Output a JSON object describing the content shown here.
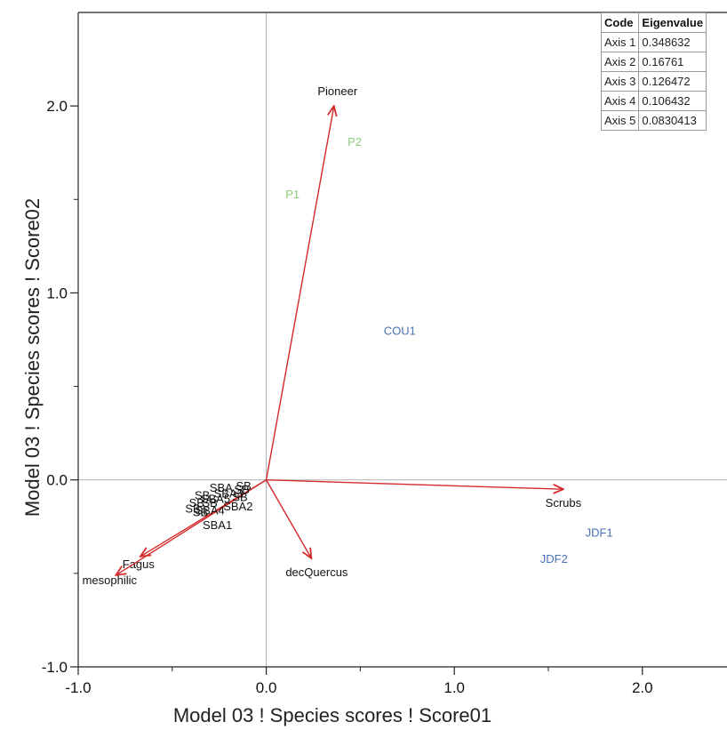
{
  "chart_data": {
    "type": "scatter",
    "xlabel": "Model 03 ! Species scores ! Score01",
    "ylabel": "Model 03 ! Species scores ! Score02",
    "xlim": [
      -1.0,
      2.45
    ],
    "ylim": [
      -1.0,
      2.5
    ],
    "x_ticks": [
      "-1.0",
      "0.0",
      "1.0",
      "2.0"
    ],
    "y_ticks": [
      "-1.0",
      "0.0",
      "1.0",
      "2.0"
    ],
    "x_tick_values": [
      -1.0,
      0.0,
      1.0,
      2.0
    ],
    "y_tick_values": [
      -1.0,
      0.0,
      1.0,
      2.0
    ],
    "x_minor_ticks": [
      -0.5,
      0.5,
      1.5
    ],
    "y_minor_ticks": [
      -0.5,
      0.5,
      1.5
    ],
    "zero_lines": true,
    "grid": false,
    "vectors": [
      {
        "label": "Pioneer",
        "x": 0.36,
        "y": 2.0
      },
      {
        "label": "Scrubs",
        "x": 1.58,
        "y": -0.05
      },
      {
        "label": "decQuercus",
        "x": 0.24,
        "y": -0.42
      },
      {
        "label": "Fagus",
        "x": -0.67,
        "y": -0.41
      },
      {
        "label": "mesophilic",
        "x": -0.8,
        "y": -0.51
      }
    ],
    "sites": [
      {
        "label": "P1",
        "x": 0.14,
        "y": 1.53,
        "group": "pioneer"
      },
      {
        "label": "P2",
        "x": 0.47,
        "y": 1.81,
        "group": "pioneer"
      },
      {
        "label": "COU1",
        "x": 0.71,
        "y": 0.8,
        "group": "scrub"
      },
      {
        "label": "JDF1",
        "x": 1.77,
        "y": -0.28,
        "group": "scrub"
      },
      {
        "label": "JDF2",
        "x": 1.53,
        "y": -0.42,
        "group": "scrub"
      },
      {
        "label": "SBA1",
        "x": -0.26,
        "y": -0.24,
        "group": "fagus"
      },
      {
        "label": "SBA2",
        "x": -0.15,
        "y": -0.14,
        "group": "fagus"
      },
      {
        "label": "SBA",
        "x": -0.24,
        "y": -0.04,
        "group": "fagus"
      },
      {
        "label": "SBA3",
        "x": -0.2,
        "y": -0.07,
        "group": "fagus"
      },
      {
        "label": "SBA4",
        "x": -0.3,
        "y": -0.16,
        "group": "fagus"
      },
      {
        "label": "SBA5",
        "x": -0.27,
        "y": -0.1,
        "group": "fagus"
      },
      {
        "label": "SB",
        "x": -0.34,
        "y": -0.08,
        "group": "fagus"
      },
      {
        "label": "SB",
        "x": -0.37,
        "y": -0.12,
        "group": "fagus"
      },
      {
        "label": "SB",
        "x": -0.39,
        "y": -0.15,
        "group": "fagus"
      },
      {
        "label": "SB",
        "x": -0.35,
        "y": -0.17,
        "group": "fagus"
      },
      {
        "label": "SB",
        "x": -0.3,
        "y": -0.12,
        "group": "fagus"
      },
      {
        "label": "SB",
        "x": -0.14,
        "y": -0.09,
        "group": "fagus"
      },
      {
        "label": "SB",
        "x": -0.13,
        "y": -0.05,
        "group": "fagus"
      },
      {
        "label": "SB",
        "x": -0.12,
        "y": -0.03,
        "group": "fagus"
      }
    ],
    "colors": {
      "vector": "#d42a2a",
      "pioneer": "#8fc97a",
      "scrub": "#4a73b5",
      "fagus": "#111111",
      "zero_line": "#b0b0b0",
      "axis": "#222222"
    }
  },
  "eigen_table": {
    "headers": [
      "Code",
      "Eigenvalue"
    ],
    "rows": [
      [
        "Axis 1",
        "0.348632"
      ],
      [
        "Axis 2",
        "0.16761"
      ],
      [
        "Axis 3",
        "0.126472"
      ],
      [
        "Axis 4",
        "0.106432"
      ],
      [
        "Axis 5",
        "0.0830413"
      ]
    ]
  }
}
